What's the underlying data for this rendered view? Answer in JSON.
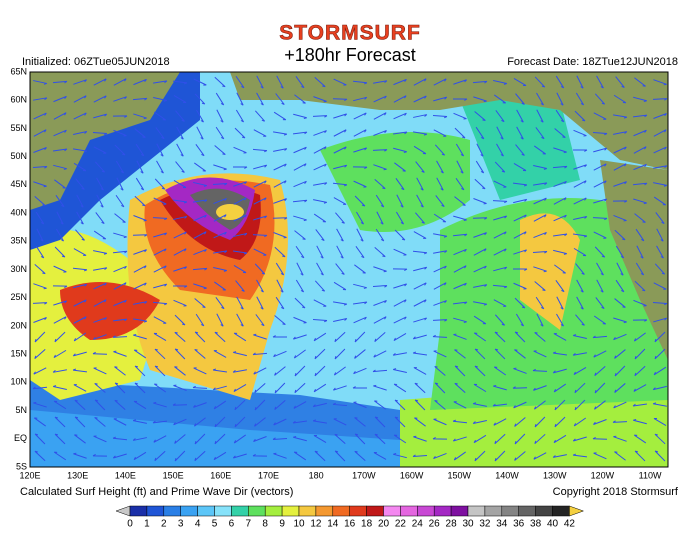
{
  "header": {
    "logo": "STORMSURF",
    "title": "+180hr Forecast",
    "initialized": "Initialized: 06ZTue05JUN2018",
    "forecast_date": "Forecast Date: 18ZTue12JUN2018"
  },
  "map": {
    "lat_labels": [
      "65N",
      "60N",
      "55N",
      "50N",
      "45N",
      "40N",
      "35N",
      "30N",
      "25N",
      "20N",
      "15N",
      "10N",
      "5N",
      "EQ",
      "5S"
    ],
    "lon_labels": [
      "120E",
      "130E",
      "140E",
      "150E",
      "160E",
      "170E",
      "180",
      "170W",
      "160W",
      "150W",
      "140W",
      "130W",
      "120W",
      "110W"
    ]
  },
  "footer": {
    "caption": "Calculated Surf Height (ft) and Prime Wave Dir (vectors)",
    "copyright": "Copyright 2018 Stormsurf"
  },
  "legend": {
    "labels": [
      0,
      1,
      2,
      3,
      4,
      5,
      6,
      7,
      8,
      9,
      10,
      12,
      14,
      16,
      18,
      20,
      22,
      24,
      26,
      28,
      30,
      32,
      34,
      36,
      38,
      40,
      42
    ],
    "under_color": "#c8c8c8",
    "colors": [
      "#1a2fa8",
      "#1f55d6",
      "#2a7fe6",
      "#3aa2f2",
      "#5cc6f8",
      "#86e2fa",
      "#33d1a8",
      "#5ee05e",
      "#a4ee3e",
      "#e4f03e",
      "#f4c840",
      "#f49830",
      "#f06a22",
      "#e03a1c",
      "#c01818",
      "#f488f0",
      "#e466e0",
      "#c848d4",
      "#a428c4",
      "#7e10a0",
      "#c4c4c4",
      "#a4a4a4",
      "#848484",
      "#646464",
      "#444444",
      "#242424"
    ],
    "over_color": "#f4d040"
  }
}
